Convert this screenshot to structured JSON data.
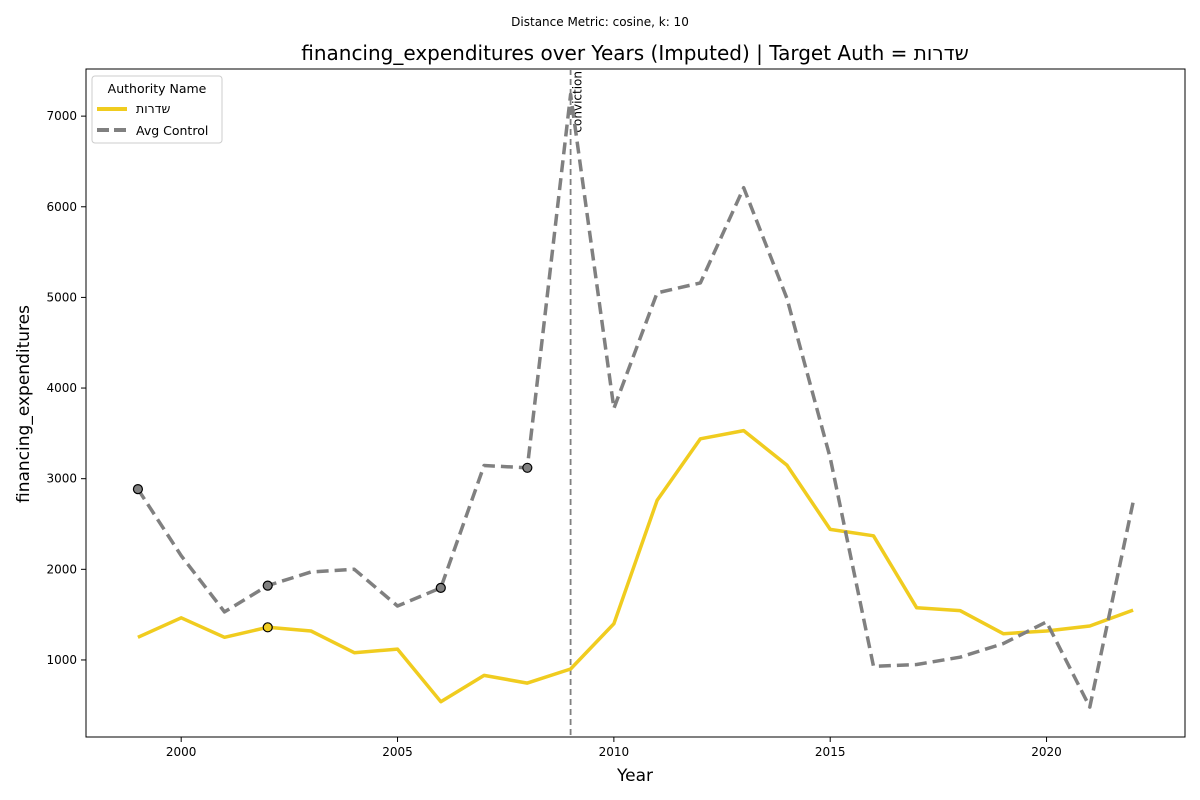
{
  "chart_data": {
    "type": "line",
    "suptitle": "Distance Metric: cosine, k: 10",
    "title": "financing_expenditures over Years (Imputed) | Target Auth = שדרות",
    "xlabel": "Year",
    "ylabel": "financing_expenditures",
    "xlim": [
      1997.8,
      2023.2
    ],
    "ylim": [
      150,
      7520
    ],
    "xticks": [
      2000,
      2005,
      2010,
      2015,
      2020
    ],
    "yticks": [
      1000,
      2000,
      3000,
      4000,
      5000,
      6000,
      7000
    ],
    "grid": false,
    "legend": {
      "title": "Authority Name",
      "position": "top-left"
    },
    "x": [
      1999,
      2000,
      2001,
      2002,
      2003,
      2004,
      2005,
      2006,
      2007,
      2008,
      2009,
      2010,
      2011,
      2012,
      2013,
      2014,
      2015,
      2016,
      2017,
      2018,
      2019,
      2020,
      2021,
      2022
    ],
    "series": [
      {
        "name": "שדרות",
        "color": "#f0cc1f",
        "style": "solid",
        "values": [
          1250,
          1465,
          1250,
          1360,
          1320,
          1080,
          1120,
          540,
          830,
          745,
          900,
          1400,
          2760,
          3440,
          3530,
          3150,
          2440,
          2370,
          1575,
          1545,
          1290,
          1320,
          1375,
          1550
        ],
        "imputed_years": [
          2002
        ]
      },
      {
        "name": "Avg Control",
        "color": "#808080",
        "style": "dashed",
        "values": [
          2885,
          2150,
          1530,
          1820,
          1970,
          2000,
          1595,
          1795,
          3145,
          3120,
          7240,
          3775,
          5050,
          5160,
          6210,
          4990,
          3230,
          930,
          950,
          1030,
          1180,
          1420,
          480,
          2740
        ],
        "imputed_years": [
          1999,
          2002,
          2006,
          2008
        ]
      }
    ],
    "annotations": [
      {
        "x": 2009,
        "label": "conviction",
        "style": "dashed-vertical",
        "color": "#808080"
      }
    ]
  }
}
